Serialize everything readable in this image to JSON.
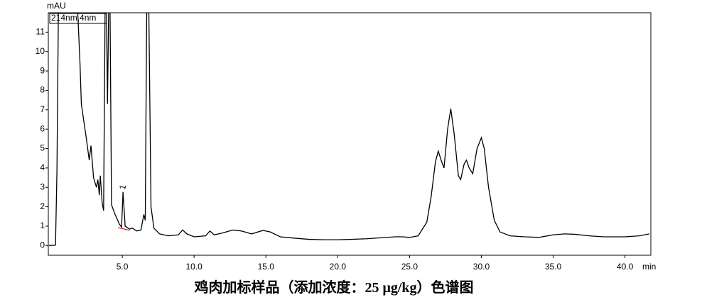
{
  "chart_data": {
    "type": "line",
    "title": "鸡肉加标样品（添加浓度：25 μg/kg）色谱图",
    "y_label": "mAU",
    "x_label": "min",
    "annotations": [
      "214nm,4nm",
      "1"
    ],
    "color": "#000000",
    "xlim": [
      -0.15,
      41.8
    ],
    "ylim": [
      -0.5,
      12
    ],
    "xticks": [
      {
        "value": 5,
        "label": "5.0"
      },
      {
        "value": 10,
        "label": "10.0"
      },
      {
        "value": 15,
        "label": "15.0"
      },
      {
        "value": 20,
        "label": "20.0"
      },
      {
        "value": 25,
        "label": "25.0"
      },
      {
        "value": 30,
        "label": "30.0"
      },
      {
        "value": 35,
        "label": "35.0"
      },
      {
        "value": 40,
        "label": "40.0"
      }
    ],
    "yticks": [
      0,
      1,
      2,
      3,
      4,
      5,
      6,
      7,
      8,
      9,
      10,
      11
    ],
    "x": [
      -0.1,
      0.35,
      0.45,
      0.55,
      1.9,
      2.05,
      2.15,
      2.5,
      2.7,
      2.82,
      3.0,
      3.2,
      3.3,
      3.4,
      3.47,
      3.6,
      3.7,
      3.8,
      3.9,
      3.97,
      4.05,
      4.15,
      4.25,
      4.5,
      4.8,
      4.95,
      5.05,
      5.2,
      5.5,
      5.7,
      6.0,
      6.3,
      6.5,
      6.6,
      6.7,
      6.85,
      7.0,
      7.2,
      7.6,
      8.2,
      8.9,
      9.2,
      9.5,
      10.0,
      10.8,
      11.1,
      11.4,
      12.0,
      12.7,
      13.3,
      14.0,
      14.8,
      15.3,
      16.0,
      17.0,
      18.0,
      19.0,
      20.0,
      21.0,
      22.0,
      23.0,
      24.0,
      24.5,
      25.0,
      25.6,
      26.2,
      26.5,
      26.8,
      27.0,
      27.2,
      27.4,
      27.65,
      27.87,
      28.1,
      28.4,
      28.56,
      28.8,
      28.96,
      29.15,
      29.4,
      29.7,
      30.0,
      30.2,
      30.5,
      30.9,
      31.3,
      32.0,
      33.0,
      34.0,
      35.0,
      35.8,
      36.5,
      37.5,
      38.5,
      40.0,
      41.0,
      41.7
    ],
    "values": [
      0,
      0.02,
      3.8,
      12,
      12,
      9.5,
      7.3,
      5.5,
      4.4,
      5.15,
      3.5,
      3.0,
      3.4,
      2.6,
      3.6,
      2.2,
      1.8,
      12,
      12,
      7.3,
      12,
      12,
      2.1,
      1.6,
      1.1,
      0.95,
      2.76,
      1.0,
      0.85,
      0.9,
      0.75,
      0.8,
      1.6,
      1.3,
      12,
      12,
      2.0,
      0.9,
      0.6,
      0.5,
      0.55,
      0.8,
      0.6,
      0.45,
      0.5,
      0.75,
      0.55,
      0.65,
      0.8,
      0.75,
      0.6,
      0.78,
      0.7,
      0.45,
      0.38,
      0.32,
      0.3,
      0.3,
      0.32,
      0.35,
      0.4,
      0.45,
      0.45,
      0.42,
      0.5,
      1.2,
      2.5,
      4.3,
      4.87,
      4.4,
      4.0,
      6.0,
      7.05,
      5.8,
      3.6,
      3.4,
      4.2,
      4.4,
      4.0,
      3.7,
      5.0,
      5.56,
      5.0,
      3.0,
      1.3,
      0.7,
      0.5,
      0.45,
      0.42,
      0.55,
      0.6,
      0.58,
      0.5,
      0.45,
      0.45,
      0.5,
      0.6
    ]
  }
}
